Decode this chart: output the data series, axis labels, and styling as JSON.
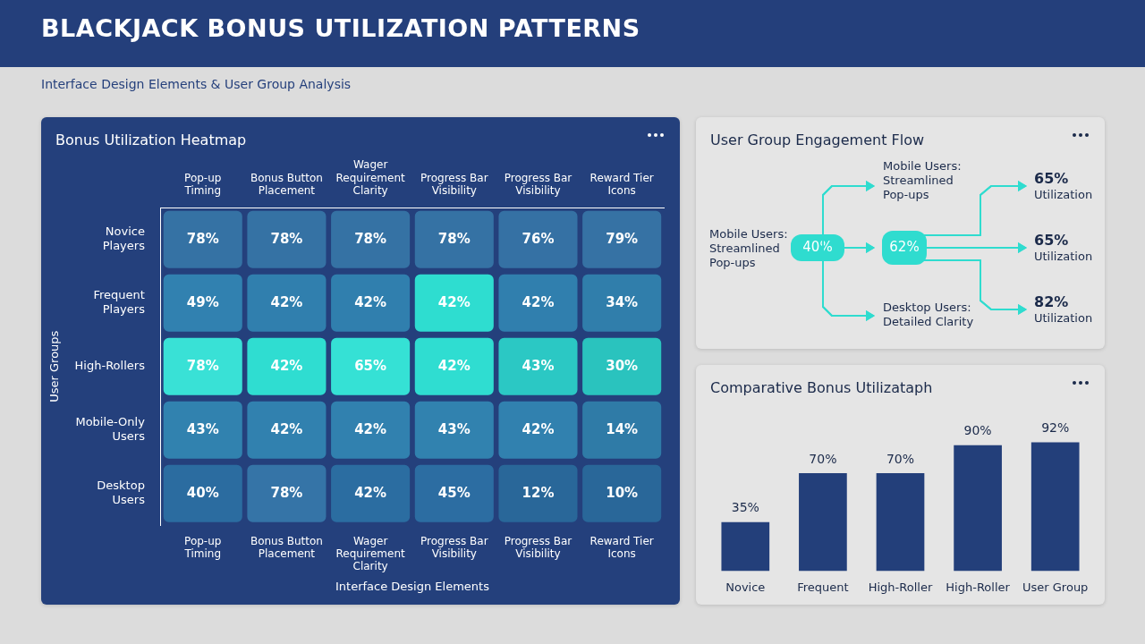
{
  "chart_data": [
    {
      "type": "other",
      "title": "BLACKJACK BONUS UTILIZATION PATTERNS",
      "subtitle": "Interface Design Elements & User Group Analysis"
    },
    {
      "type": "heatmap",
      "title": "Bonus Utilization Heatmap",
      "xlabel": "Interface Design Elements",
      "ylabel": "User Groups",
      "categories": [
        "Pop-up Timing",
        "Bonus Button Placement",
        "Wager Requirement Clarity",
        "Progress Bar Visibility",
        "Progress Bar Visibility",
        "Reward Tier Icons"
      ],
      "y_categories": [
        "Novice Players",
        "Frequent Players",
        "High-Rollers",
        "Mobile-Only Users",
        "Desktop Users"
      ],
      "cells": [
        [
          78,
          78,
          78,
          78,
          76,
          79
        ],
        [
          49,
          42,
          42,
          42,
          42,
          34
        ],
        [
          78,
          42,
          65,
          42,
          43,
          30
        ],
        [
          43,
          42,
          42,
          43,
          42,
          14
        ],
        [
          40,
          78,
          42,
          45,
          12,
          10
        ]
      ],
      "cell_labels": [
        [
          "78%",
          "78%",
          "78%",
          "78%",
          "76%",
          "79%"
        ],
        [
          "49%",
          "42%",
          "42%",
          "42%",
          "42%",
          "34%"
        ],
        [
          "78%",
          "42%",
          "65%",
          "42%",
          "43%",
          "30%"
        ],
        [
          "43%",
          "42%",
          "42%",
          "43%",
          "42%",
          "14%"
        ],
        [
          "40%",
          "78%",
          "42%",
          "45%",
          "12%",
          "10%"
        ]
      ],
      "colors": [
        [
          "#2c6ba0",
          "#2c6ba0",
          "#2c6ba0",
          "#2c6ba0",
          "#2c6ba0",
          "#2c6ba0"
        ],
        [
          "#3181b0",
          "#3181b0",
          "#3181b0",
          "#2fe0d3",
          "#3181b0",
          "#3181b0"
        ],
        [
          "#30e0d4",
          "#30e0d4",
          "#30e0d4",
          "#30e0d4",
          "#2bcac6",
          "#2bc9c4"
        ],
        [
          "#3283b1",
          "#3283b1",
          "#3283b1",
          "#3283b1",
          "#3283b1",
          "#3283b1"
        ],
        [
          "#2c6ea3",
          "#2c6ea3",
          "#2c6ea3",
          "#2c6ea3",
          "#2c6ea3",
          "#2c6ea3"
        ]
      ]
    },
    {
      "type": "other",
      "title": "User Group Engagement Flow",
      "annotations": [
        "Mobile Users: Streamlined Pop-ups",
        "Mobile Users: Streamlined Pop-ups",
        "Desktop Users: Detailed Clarity",
        "40%",
        "62%",
        "65% Utilization",
        "65% Utilization",
        "82% Utilization"
      ]
    },
    {
      "type": "bar",
      "title": "Comparative Bonus Utilizataph",
      "categories": [
        "Novice",
        "Frequent",
        "High-Roller",
        "High-Roller",
        "User Group"
      ],
      "values": [
        35,
        70,
        70,
        90,
        92
      ],
      "value_labels": [
        "35%",
        "70%",
        "70%",
        "90%",
        "92%"
      ],
      "color": "#233f7a"
    }
  ]
}
